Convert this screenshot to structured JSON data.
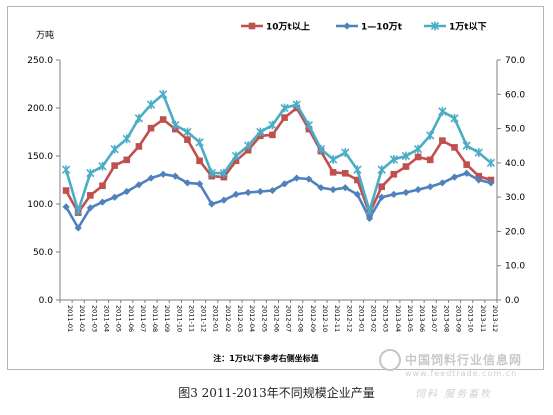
{
  "caption": "图3 2011-2013年不同规模企业产量",
  "watermark": {
    "title": "中国饲料行业信息网",
    "url": "www.feedtrade.com.cn",
    "slogan": "饲料 服务畜牧"
  },
  "chart_data": {
    "type": "line",
    "title": "",
    "ylabel_left": "万吨",
    "note": "注：1万t以下参考右侧坐标值",
    "ylim_left": [
      0,
      250
    ],
    "yticks_left": [
      "0.0",
      "50.0",
      "100.0",
      "150.0",
      "200.0",
      "250.0"
    ],
    "ylim_right": [
      0,
      70
    ],
    "yticks_right": [
      "0.0",
      "10.0",
      "20.0",
      "30.0",
      "40.0",
      "50.0",
      "60.0",
      "70.0"
    ],
    "grid": false,
    "legend_position": "top",
    "x": [
      "2011-01",
      "2011-02",
      "2011-03",
      "2011-04",
      "2011-05",
      "2011-06",
      "2011-07",
      "2011-08",
      "2011-09",
      "2011-10",
      "2011-11",
      "2011-12",
      "2012-01",
      "2012-02",
      "2012-03",
      "2012-04",
      "2012-05",
      "2012-06",
      "2012-07",
      "2012-08",
      "2012-09",
      "2012-10",
      "2012-11",
      "2012-12",
      "2013-01",
      "2013-02",
      "2013-03",
      "2013-04",
      "2013-05",
      "2013-06",
      "2013-07",
      "2013-08",
      "2013-09",
      "2013-10",
      "2013-11",
      "2013-12"
    ],
    "series": [
      {
        "name": "10万t以上",
        "axis": "left",
        "color": "#c0504d",
        "marker": "square",
        "values": [
          114,
          91,
          109,
          119,
          140,
          146,
          160,
          179,
          188,
          178,
          167,
          145,
          129,
          128,
          145,
          156,
          171,
          172,
          190,
          200,
          178,
          155,
          133,
          132,
          125,
          90,
          118,
          131,
          139,
          149,
          146,
          166,
          159,
          141,
          129,
          125
        ]
      },
      {
        "name": "1—10万t",
        "axis": "left",
        "color": "#4f81bd",
        "marker": "diamond",
        "values": [
          97,
          75,
          96,
          102,
          107,
          113,
          120,
          127,
          131,
          129,
          122,
          121,
          100,
          104,
          110,
          112,
          113,
          114,
          121,
          127,
          126,
          117,
          115,
          117,
          110,
          85,
          107,
          110,
          112,
          115,
          118,
          122,
          128,
          132,
          125,
          122
        ]
      },
      {
        "name": "1万t以下",
        "axis": "right",
        "color": "#4bacc6",
        "marker": "star",
        "values": [
          38,
          26,
          37,
          39,
          44,
          47,
          53,
          57,
          60,
          51,
          49,
          46,
          37,
          37,
          42,
          45,
          49,
          51,
          56,
          57,
          51,
          44,
          41,
          43,
          38,
          26,
          38,
          41,
          42,
          44,
          48,
          55,
          53,
          45,
          43,
          40
        ]
      }
    ]
  }
}
